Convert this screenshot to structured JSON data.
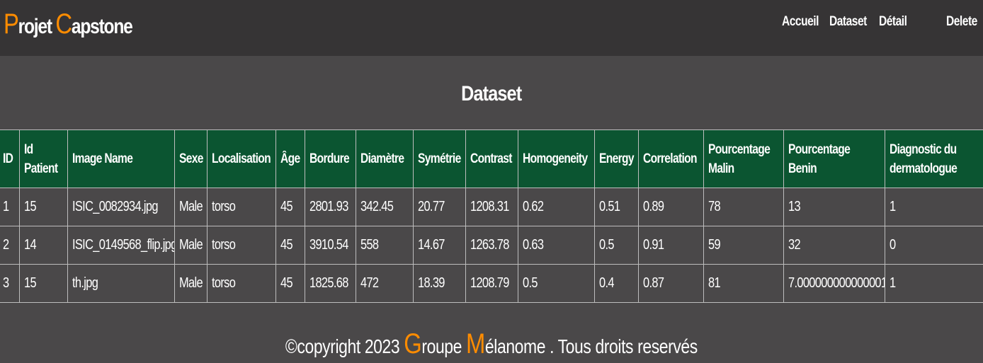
{
  "brand": {
    "p_initial": "P",
    "p_rest": "rojet ",
    "c_initial": "C",
    "c_rest": "apstone"
  },
  "nav": {
    "accueil": "Accueil",
    "dataset": "Dataset",
    "detail": "Détail",
    "delete": "Delete"
  },
  "page_title": "Dataset",
  "table": {
    "headers": [
      "ID",
      "Id Patient",
      "Image Name",
      "Sexe",
      "Localisation",
      "Âge",
      "Bordure",
      "Diamètre",
      "Symétrie",
      "Contrast",
      "Homogeneity",
      "Energy",
      "Correlation",
      "Pourcentage Malin",
      "Pourcentage Benin",
      "Diagnostic du dermatologue"
    ],
    "rows": [
      [
        "1",
        "15",
        "ISIC_0082934.jpg",
        "Male",
        "torso",
        "45",
        "2801.93",
        "342.45",
        "20.77",
        "1208.31",
        "0.62",
        "0.51",
        "0.89",
        "78",
        "13",
        "1"
      ],
      [
        "2",
        "14",
        "ISIC_0149568_flip.jpg",
        "Male",
        "torso",
        "45",
        "3910.54",
        "558",
        "14.67",
        "1263.78",
        "0.63",
        "0.5",
        "0.91",
        "59",
        "32",
        "0"
      ],
      [
        "3",
        "15",
        "th.jpg",
        "Male",
        "torso",
        "45",
        "1825.68",
        "472",
        "18.39",
        "1208.79",
        "0.5",
        "0.4",
        "0.87",
        "81",
        "7.000000000000001",
        "1"
      ]
    ]
  },
  "footer": {
    "prefix": "©copyright 2023 ",
    "g_initial": "G",
    "g_rest": "roupe ",
    "m_initial": "M",
    "m_rest": "élanome . Tous droits reservés"
  },
  "colors": {
    "accent": "#ff8c00",
    "header_bg": "#0b5531",
    "navbar_bg": "#363435",
    "page_bg": "#4a4849"
  }
}
